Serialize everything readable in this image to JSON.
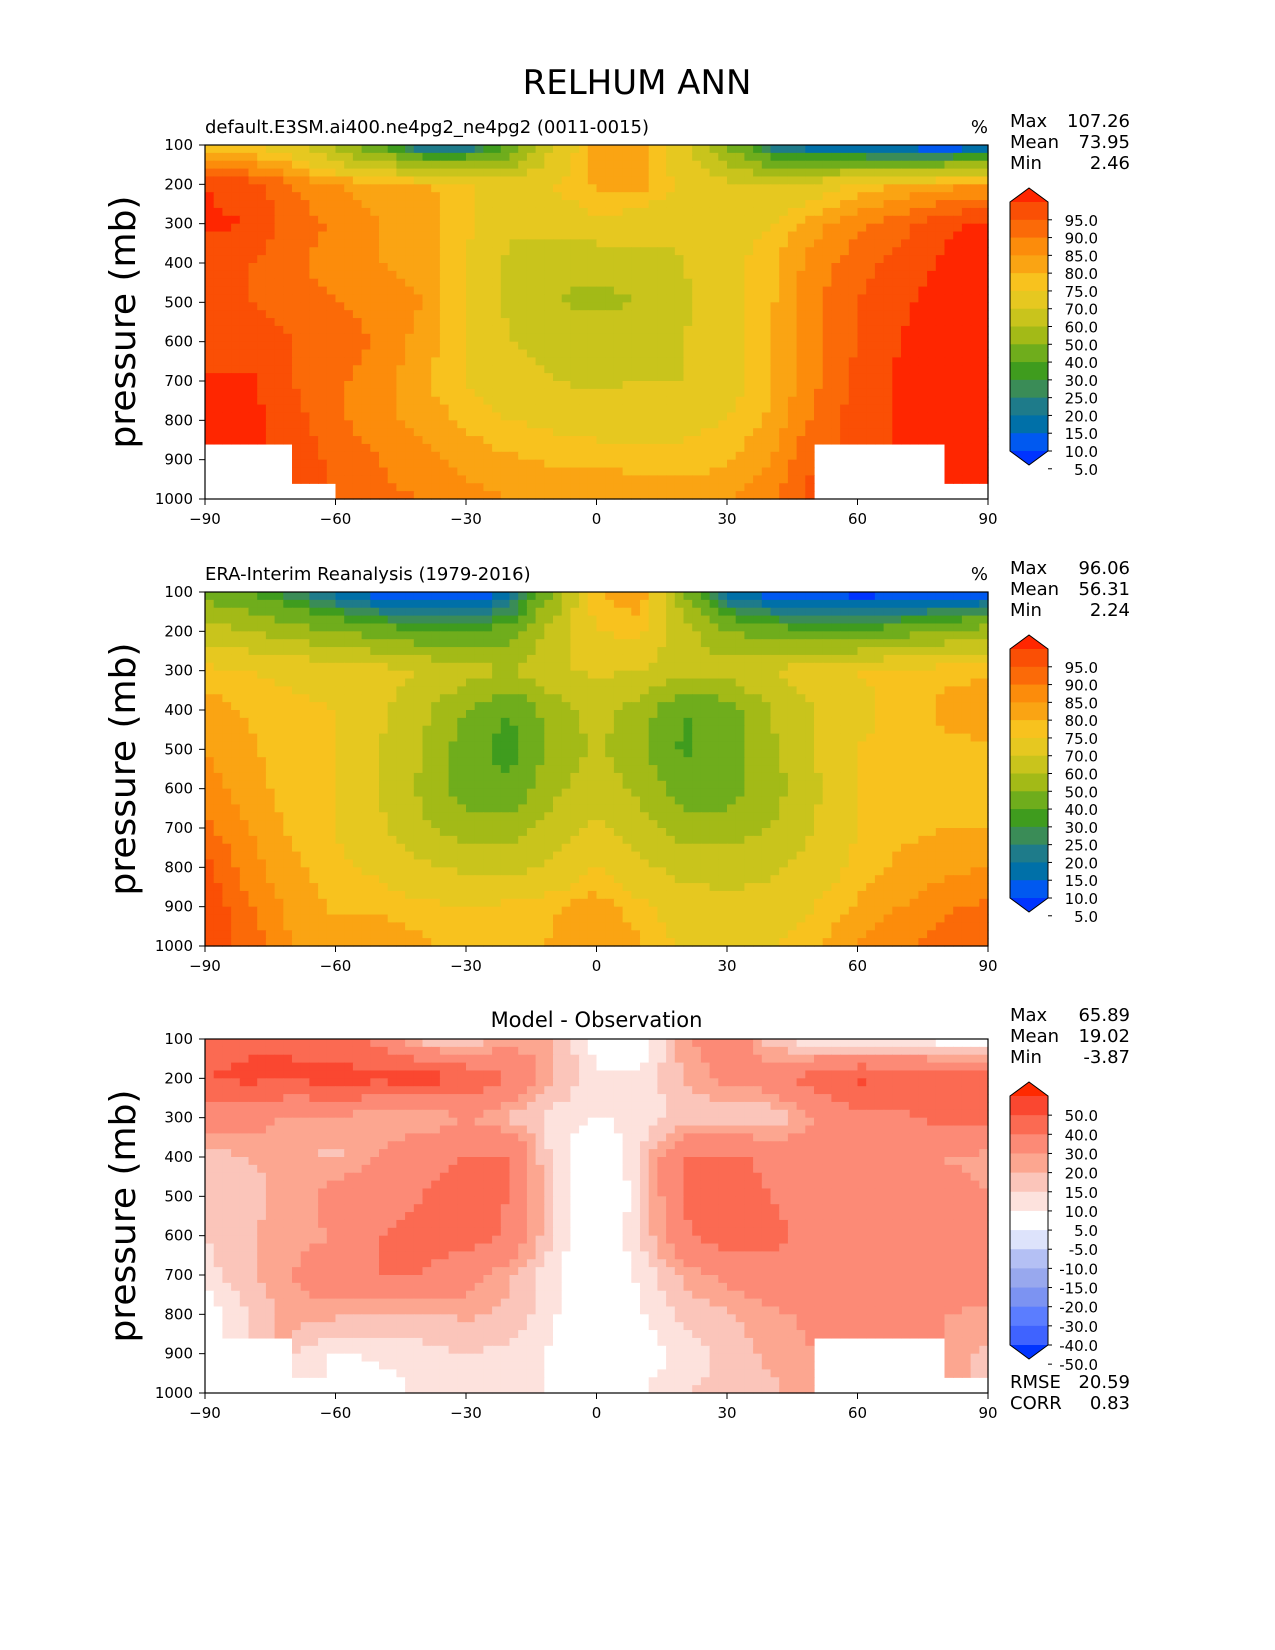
{
  "figure": {
    "title": "RELHUM ANN"
  },
  "colors": {
    "abs_levels": [
      "#0034ff",
      "#0059f0",
      "#0070a8",
      "#1e7b8a",
      "#3a8c57",
      "#3f9c1e",
      "#6fad1c",
      "#a3ba17",
      "#c9c41c",
      "#e6c820",
      "#f8c21e",
      "#faa413",
      "#fc8c0b",
      "#fb6a08",
      "#fa4f05",
      "#ff2600"
    ],
    "diff_levels": [
      "#0034ff",
      "#3f63ff",
      "#5b7dff",
      "#7c93f2",
      "#98a8ee",
      "#b4c0f4",
      "#dde3fb",
      "#ffffff",
      "#fde2dd",
      "#fbc5ba",
      "#fca690",
      "#fc8a76",
      "#fb6a52",
      "#fa4730",
      "#ff2a00"
    ]
  },
  "chart_data": [
    {
      "type": "contour",
      "title": "default.E3SM.ai400.ne4pg2_ne4pg2 (0011-0015)",
      "units": "%",
      "ylabel": "pressure (mb)",
      "xlim": [
        -90,
        90
      ],
      "ylim": [
        1000,
        100
      ],
      "x_ticks": [
        "−90",
        "−60",
        "−30",
        "0",
        "30",
        "60",
        "90"
      ],
      "y_ticks": [
        "100",
        "200",
        "300",
        "400",
        "500",
        "600",
        "700",
        "800",
        "900",
        "1000"
      ],
      "stats": [
        {
          "label": "Max",
          "value": "107.26"
        },
        {
          "label": "Mean",
          "value": "73.95"
        },
        {
          "label": "Min",
          "value": "2.46"
        }
      ],
      "colorbar_labels": [
        "95.0",
        "90.0",
        "85.0",
        "80.0",
        "75.0",
        "70.0",
        "60.0",
        "50.0",
        "40.0",
        "30.0",
        "25.0",
        "20.0",
        "15.0",
        "10.0",
        "5.0"
      ],
      "lat": [
        -90,
        -80,
        -70,
        -60,
        -50,
        -40,
        -30,
        -20,
        -10,
        0,
        10,
        20,
        30,
        40,
        50,
        60,
        70,
        80,
        90
      ],
      "plev": [
        100,
        200,
        300,
        400,
        500,
        600,
        700,
        800,
        900,
        1000
      ],
      "values": [
        [
          72,
          70,
          65,
          45,
          30,
          10,
          12,
          30,
          60,
          78,
          80,
          62,
          40,
          15,
          8,
          5,
          3,
          2,
          3
        ],
        [
          95,
          92,
          85,
          80,
          78,
          76,
          72,
          65,
          70,
          76,
          78,
          68,
          62,
          60,
          65,
          72,
          75,
          78,
          80
        ],
        [
          96,
          95,
          88,
          84,
          80,
          78,
          72,
          62,
          65,
          68,
          66,
          62,
          64,
          70,
          78,
          84,
          88,
          94,
          96
        ],
        [
          93,
          90,
          86,
          82,
          80,
          78,
          70,
          58,
          52,
          52,
          55,
          60,
          68,
          74,
          82,
          88,
          92,
          96,
          96
        ],
        [
          92,
          90,
          88,
          85,
          84,
          80,
          70,
          58,
          50,
          48,
          50,
          58,
          68,
          74,
          84,
          90,
          94,
          97,
          98
        ],
        [
          92,
          92,
          90,
          88,
          84,
          78,
          70,
          60,
          56,
          55,
          56,
          60,
          68,
          74,
          84,
          90,
          95,
          98,
          98
        ],
        [
          96,
          96,
          90,
          86,
          82,
          76,
          70,
          64,
          60,
          58,
          60,
          60,
          66,
          74,
          84,
          92,
          96,
          98,
          98
        ],
        [
          97,
          97,
          92,
          86,
          82,
          78,
          74,
          70,
          68,
          66,
          66,
          68,
          70,
          76,
          86,
          92,
          96,
          98,
          98
        ],
        [
          null,
          null,
          95,
          88,
          85,
          82,
          78,
          76,
          74,
          74,
          72,
          72,
          74,
          80,
          90,
          null,
          null,
          97,
          98
        ],
        [
          null,
          null,
          null,
          90,
          86,
          85,
          82,
          80,
          80,
          80,
          80,
          78,
          80,
          84,
          92,
          null,
          null,
          null,
          98
        ]
      ]
    },
    {
      "type": "contour",
      "title": "ERA-Interim Reanalysis (1979-2016)",
      "units": "%",
      "ylabel": "pressure (mb)",
      "xlim": [
        -90,
        90
      ],
      "ylim": [
        1000,
        100
      ],
      "x_ticks": [
        "−90",
        "−60",
        "−30",
        "0",
        "30",
        "60",
        "90"
      ],
      "y_ticks": [
        "100",
        "200",
        "300",
        "400",
        "500",
        "600",
        "700",
        "800",
        "900",
        "1000"
      ],
      "stats": [
        {
          "label": "Max",
          "value": "96.06"
        },
        {
          "label": "Mean",
          "value": "56.31"
        },
        {
          "label": "Min",
          "value": "2.24"
        }
      ],
      "colorbar_labels": [
        "95.0",
        "90.0",
        "85.0",
        "80.0",
        "75.0",
        "70.0",
        "60.0",
        "50.0",
        "40.0",
        "30.0",
        "25.0",
        "20.0",
        "15.0",
        "10.0",
        "5.0"
      ],
      "lat": [
        -90,
        -80,
        -70,
        -60,
        -50,
        -40,
        -30,
        -20,
        -10,
        0,
        10,
        20,
        30,
        40,
        50,
        60,
        70,
        80,
        90
      ],
      "plev": [
        100,
        200,
        300,
        400,
        500,
        600,
        700,
        800,
        900,
        1000
      ],
      "values": [
        [
          35,
          30,
          20,
          12,
          5,
          3,
          4,
          10,
          40,
          75,
          80,
          40,
          12,
          5,
          3,
          2,
          2,
          2,
          3
        ],
        [
          55,
          50,
          45,
          40,
          35,
          30,
          30,
          35,
          55,
          70,
          72,
          55,
          40,
          35,
          30,
          30,
          35,
          40,
          45
        ],
        [
          72,
          70,
          68,
          66,
          64,
          60,
          55,
          50,
          58,
          62,
          60,
          52,
          55,
          60,
          68,
          70,
          72,
          74,
          74
        ],
        [
          78,
          74,
          72,
          70,
          62,
          52,
          40,
          30,
          45,
          55,
          45,
          30,
          35,
          50,
          60,
          68,
          72,
          76,
          78
        ],
        [
          80,
          76,
          72,
          70,
          60,
          50,
          35,
          25,
          42,
          52,
          42,
          28,
          35,
          48,
          60,
          70,
          72,
          74,
          74
        ],
        [
          82,
          78,
          72,
          70,
          60,
          48,
          35,
          32,
          48,
          56,
          48,
          35,
          35,
          45,
          58,
          70,
          72,
          72,
          72
        ],
        [
          86,
          80,
          74,
          70,
          62,
          52,
          45,
          44,
          54,
          62,
          54,
          44,
          44,
          50,
          60,
          70,
          74,
          75,
          75
        ],
        [
          92,
          82,
          76,
          72,
          68,
          62,
          58,
          56,
          62,
          70,
          62,
          56,
          56,
          58,
          64,
          72,
          76,
          78,
          80
        ],
        [
          94,
          86,
          78,
          74,
          74,
          72,
          70,
          72,
          74,
          78,
          72,
          66,
          62,
          64,
          70,
          76,
          80,
          84,
          86
        ],
        [
          95,
          88,
          80,
          78,
          78,
          76,
          72,
          70,
          76,
          80,
          76,
          68,
          66,
          70,
          74,
          80,
          84,
          88,
          90
        ]
      ]
    },
    {
      "type": "contour",
      "title": "Model - Observation",
      "ylabel": "pressure (mb)",
      "xlim": [
        -90,
        90
      ],
      "ylim": [
        1000,
        100
      ],
      "x_ticks": [
        "−90",
        "−60",
        "−30",
        "0",
        "30",
        "60",
        "90"
      ],
      "y_ticks": [
        "100",
        "200",
        "300",
        "400",
        "500",
        "600",
        "700",
        "800",
        "900",
        "1000"
      ],
      "stats": [
        {
          "label": "Max",
          "value": "65.89"
        },
        {
          "label": "Mean",
          "value": "19.02"
        },
        {
          "label": "Min",
          "value": "-3.87"
        }
      ],
      "extra_stats": [
        {
          "label": "RMSE",
          "value": "20.59"
        },
        {
          "label": "CORR",
          "value": "0.83"
        }
      ],
      "colorbar_labels": [
        "50.0",
        "40.0",
        "30.0",
        "20.0",
        "15.0",
        "10.0",
        "5.0",
        "-5.0",
        "-10.0",
        "-15.0",
        "-20.0",
        "-30.0",
        "-40.0",
        "-50.0"
      ],
      "lat": [
        -90,
        -80,
        -70,
        -60,
        -50,
        -40,
        -30,
        -20,
        -10,
        0,
        10,
        20,
        30,
        40,
        50,
        60,
        70,
        80,
        90
      ],
      "plev": [
        100,
        200,
        300,
        400,
        500,
        600,
        700,
        800,
        900,
        1000
      ],
      "values": [
        [
          35,
          38,
          40,
          34,
          28,
          12,
          8,
          18,
          16,
          2,
          0,
          18,
          28,
          12,
          5,
          3,
          2,
          1,
          1
        ],
        [
          40,
          42,
          40,
          45,
          42,
          45,
          40,
          30,
          16,
          6,
          6,
          15,
          22,
          25,
          35,
          42,
          40,
          38,
          36
        ],
        [
          24,
          25,
          18,
          18,
          16,
          14,
          20,
          14,
          8,
          5,
          6,
          12,
          10,
          10,
          20,
          26,
          28,
          33,
          34
        ],
        [
          12,
          15,
          16,
          14,
          20,
          28,
          30,
          30,
          8,
          -2,
          10,
          30,
          32,
          28,
          24,
          22,
          22,
          20,
          18
        ],
        [
          12,
          14,
          16,
          24,
          26,
          30,
          34,
          30,
          10,
          -4,
          8,
          32,
          33,
          30,
          26,
          24,
          24,
          22,
          20
        ],
        [
          10,
          14,
          18,
          20,
          30,
          32,
          35,
          28,
          10,
          -2,
          10,
          28,
          35,
          32,
          28,
          26,
          24,
          24,
          22
        ],
        [
          8,
          14,
          20,
          26,
          30,
          30,
          24,
          16,
          6,
          -2,
          6,
          16,
          22,
          28,
          26,
          24,
          24,
          26,
          24
        ],
        [
          0,
          10,
          18,
          16,
          14,
          14,
          16,
          14,
          6,
          -4,
          4,
          12,
          14,
          18,
          22,
          20,
          20,
          20,
          18
        ],
        [
          null,
          null,
          10,
          4,
          6,
          8,
          10,
          8,
          4,
          -2,
          2,
          6,
          12,
          16,
          20,
          null,
          null,
          16,
          14
        ],
        [
          null,
          null,
          null,
          2,
          2,
          6,
          8,
          8,
          4,
          0,
          4,
          10,
          12,
          14,
          18,
          null,
          null,
          null,
          10
        ]
      ]
    }
  ]
}
